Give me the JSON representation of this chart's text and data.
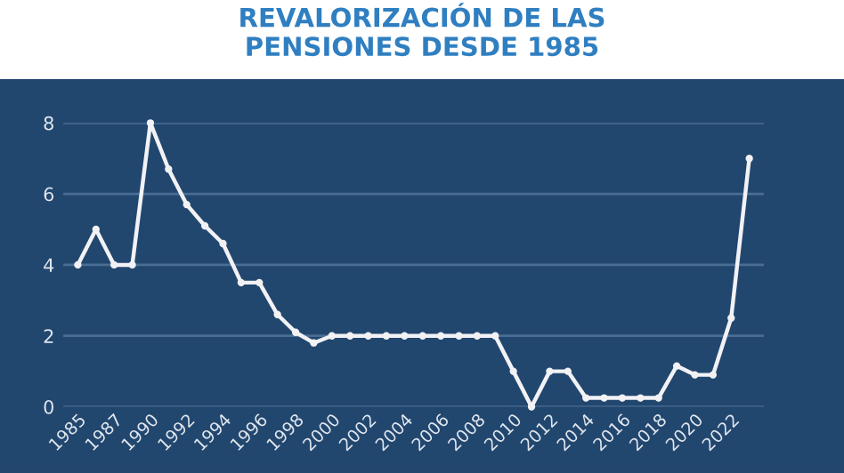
{
  "chart_data": {
    "type": "line",
    "title": "REVALORIZACIÓN DE LAS\nPENSIONES DESDE 1985",
    "categories": [
      "1985",
      null,
      "1987",
      null,
      "1990",
      null,
      "1992",
      null,
      "1994",
      null,
      "1996",
      null,
      "1998",
      null,
      "2000",
      null,
      "2002",
      null,
      "2004",
      null,
      "2006",
      null,
      "2008",
      null,
      "2010",
      null,
      "2012",
      null,
      "2014",
      null,
      "2016",
      null,
      "2018",
      null,
      "2020",
      null,
      "2022",
      null
    ],
    "series": [
      {
        "color": "#f2f2f5",
        "values": [
          4,
          5,
          4,
          4,
          8,
          6.7,
          5.7,
          5.1,
          4.6,
          3.5,
          3.5,
          2.6,
          2.1,
          1.8,
          2,
          2,
          2,
          2,
          2,
          2,
          2,
          2,
          2,
          2,
          1.0,
          0,
          1,
          1,
          0.25,
          0.25,
          0.25,
          0.25,
          0.25,
          1.15,
          0.9,
          0.9,
          2.5,
          7.0
        ]
      }
    ],
    "ylim": [
      0,
      8
    ],
    "yticks": [
      0,
      2,
      4,
      6,
      8
    ],
    "grid": "y",
    "marker": "circle",
    "line_style": "solid",
    "legend": false
  }
}
